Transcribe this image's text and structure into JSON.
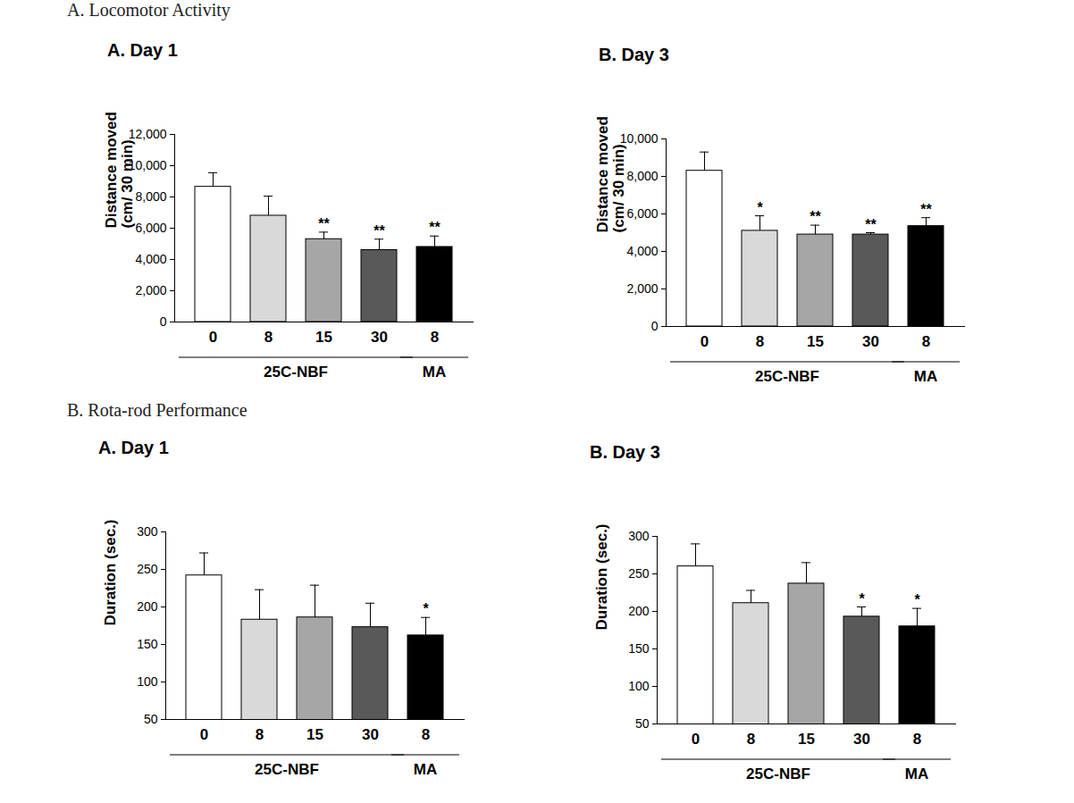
{
  "section_titles": [
    "A. Locomotor Activity",
    "B. Rota-rod Performance"
  ],
  "chart_data": [
    {
      "type": "bar",
      "title": "A. Day 1",
      "y_label": "Distance moved\n(cm/ 30 min)",
      "categories": [
        "0",
        "8",
        "15",
        "30",
        "8"
      ],
      "values": [
        8650,
        6800,
        5300,
        4600,
        4800
      ],
      "errors": [
        900,
        1250,
        450,
        700,
        700
      ],
      "significance": [
        null,
        null,
        "**",
        "**",
        "**"
      ],
      "colors": [
        "#ffffff",
        "#d9d9d9",
        "#a6a6a6",
        "#595959",
        "#000000"
      ],
      "groups": [
        {
          "label": "25C-NBF",
          "categories": [
            0,
            1,
            2,
            3
          ]
        },
        {
          "label": "MA",
          "categories": [
            4
          ]
        }
      ],
      "ylim": [
        0,
        12000
      ],
      "yticks": [
        0,
        2000,
        4000,
        6000,
        8000,
        10000,
        12000
      ]
    },
    {
      "type": "bar",
      "title": "B. Day 3",
      "y_label": "Distance moved\n(cm/ 30 min)",
      "categories": [
        "0",
        "8",
        "15",
        "30",
        "8"
      ],
      "values": [
        8300,
        5100,
        4900,
        4900,
        5350
      ],
      "errors": [
        1000,
        800,
        500,
        100,
        450
      ],
      "significance": [
        null,
        "*",
        "**",
        "**",
        "**"
      ],
      "colors": [
        "#ffffff",
        "#d9d9d9",
        "#a6a6a6",
        "#595959",
        "#000000"
      ],
      "groups": [
        {
          "label": "25C-NBF",
          "categories": [
            0,
            1,
            2,
            3
          ]
        },
        {
          "label": "MA",
          "categories": [
            4
          ]
        }
      ],
      "ylim": [
        0,
        10000
      ],
      "yticks": [
        0,
        2000,
        4000,
        6000,
        8000,
        10000
      ]
    },
    {
      "type": "bar",
      "title": "A. Day 1",
      "y_label": "Duration (sec.)",
      "categories": [
        "0",
        "8",
        "15",
        "30",
        "8"
      ],
      "values": [
        242,
        183,
        186,
        173,
        162
      ],
      "errors": [
        30,
        40,
        43,
        32,
        24
      ],
      "significance": [
        null,
        null,
        null,
        null,
        "*"
      ],
      "colors": [
        "#ffffff",
        "#d9d9d9",
        "#a6a6a6",
        "#595959",
        "#000000"
      ],
      "groups": [
        {
          "label": "25C-NBF",
          "categories": [
            0,
            1,
            2,
            3
          ]
        },
        {
          "label": "MA",
          "categories": [
            4
          ]
        }
      ],
      "ylim": [
        50,
        300
      ],
      "yticks": [
        50,
        100,
        150,
        200,
        250,
        300
      ]
    },
    {
      "type": "bar",
      "title": "B. Day 3",
      "y_label": "Duration (sec.)",
      "categories": [
        "0",
        "8",
        "15",
        "30",
        "8"
      ],
      "values": [
        260,
        211,
        237,
        193,
        180
      ],
      "errors": [
        30,
        17,
        28,
        13,
        24
      ],
      "significance": [
        null,
        null,
        null,
        "*",
        "*"
      ],
      "colors": [
        "#ffffff",
        "#d9d9d9",
        "#a6a6a6",
        "#595959",
        "#000000"
      ],
      "groups": [
        {
          "label": "25C-NBF",
          "categories": [
            0,
            1,
            2,
            3
          ]
        },
        {
          "label": "MA",
          "categories": [
            4
          ]
        }
      ],
      "ylim": [
        50,
        300
      ],
      "yticks": [
        50,
        100,
        150,
        200,
        250,
        300
      ]
    }
  ]
}
